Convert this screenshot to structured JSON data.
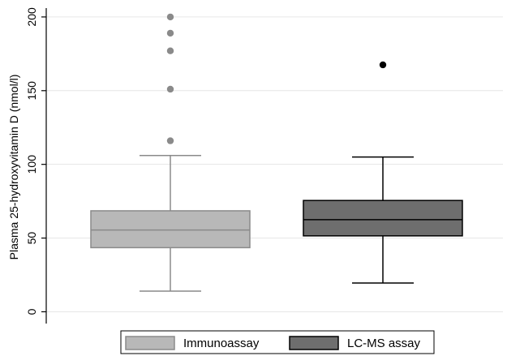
{
  "chart_data": {
    "type": "boxplot",
    "ylabel": "Plasma 25-hydroxyvitamin D (nmol/l)",
    "xlabel": "",
    "ylim": [
      -8,
      206
    ],
    "yticks": [
      0,
      50,
      100,
      150,
      200
    ],
    "grid": "horizontal",
    "legend_position": "bottom",
    "series": [
      {
        "name": "Immunoassay",
        "color": "#b8b8b8",
        "stroke": "#8a8a8a",
        "whisker_low": 14,
        "q1": 43.5,
        "median": 55.5,
        "q3": 68.5,
        "whisker_high": 106,
        "outliers": [
          116,
          151,
          177,
          189,
          200
        ],
        "outlier_color": "#8a8a8a"
      },
      {
        "name": "LC-MS assay",
        "color": "#6e6e6e",
        "stroke": "#000000",
        "whisker_low": 19.5,
        "q1": 51.5,
        "median": 62.5,
        "q3": 75.5,
        "whisker_high": 105,
        "outliers": [
          167.5
        ],
        "outlier_color": "#000000"
      }
    ]
  }
}
